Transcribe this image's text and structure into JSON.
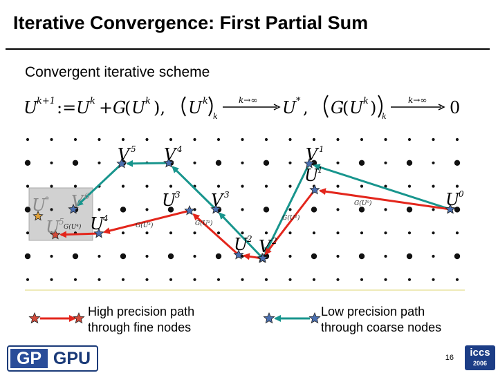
{
  "title": "Iterative Convergence: First Partial Sum",
  "subtitle": "Convergent iterative scheme",
  "formula": {
    "lhs_base": "U",
    "lhs_sup": "k+1",
    "assign": ":=",
    "rhs1_base": "U",
    "rhs1_sup": "k",
    "plus": "+",
    "g_name": "G",
    "g_arg_base": "U",
    "g_arg_sup": "k",
    "trail_comma": "),",
    "lim1_arg": "U",
    "lim1_sup": "k",
    "lim1_sub": "k",
    "lim_over": "k→∞",
    "lim1_result": "U",
    "lim1_result_sup": "*",
    "comma2": ",",
    "lim2_g": "G",
    "lim2_arg": "U",
    "lim2_sup": "k",
    "lim2_sub": "k",
    "lim2_result": "0"
  },
  "fine_labels": [
    {
      "base": "U",
      "sup": "0"
    },
    {
      "base": "U",
      "sup": "1"
    },
    {
      "base": "U",
      "sup": "2"
    },
    {
      "base": "U",
      "sup": "3"
    },
    {
      "base": "U",
      "sup": "4"
    },
    {
      "base": "U",
      "sup": "5"
    },
    {
      "base": "U",
      "sup": "*"
    }
  ],
  "coarse_labels": [
    {
      "base": "V",
      "sup": "1"
    },
    {
      "base": "V",
      "sup": "2"
    },
    {
      "base": "V",
      "sup": "3"
    },
    {
      "base": "V",
      "sup": "4"
    },
    {
      "base": "V",
      "sup": "5"
    },
    {
      "base": "V",
      "sup": "6"
    }
  ],
  "g_labels": [
    "G(U⁰)",
    "G(U¹)",
    "G(U²)",
    "G(U³)",
    "G(U⁴)"
  ],
  "legend": {
    "fine_line1": "High precision path",
    "fine_line2": "through fine nodes",
    "coarse_line1": "Low precision path",
    "coarse_line2": "through coarse nodes"
  },
  "colors": {
    "fine_path": "#e3261c",
    "coarse_path": "#18958d",
    "star_fill": "#4a6fb0",
    "fine_star_fill": "#d24a3a",
    "highlight_box": "#c8c8c8",
    "baseline": "#e8e3a0"
  },
  "page_number": "16",
  "logo_left": {
    "part1": "GP",
    "part2": "GPU"
  },
  "logo_right": {
    "line1": "iccs",
    "line2": "2006"
  }
}
